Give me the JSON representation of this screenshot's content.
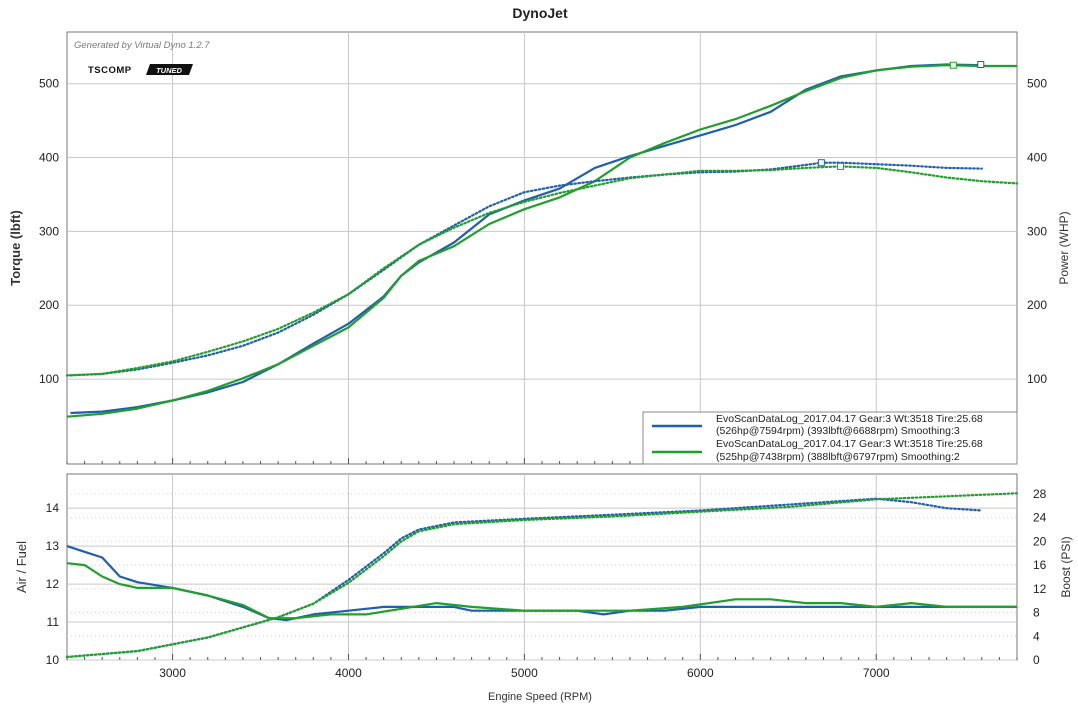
{
  "title": "DynoJet",
  "watermark": "Generated by Virtual Dyno 1.2.7",
  "logo": {
    "text_a": "TSCOMP",
    "text_b": "TUNED"
  },
  "colors": {
    "blue": "#1f5fb0",
    "green": "#1fa02a",
    "grid": "#c8c8c8",
    "axis": "#555555"
  },
  "chart_data": [
    {
      "type": "line",
      "panel": "top",
      "ylabel": "Torque (lbft)",
      "y2label": "Power (WHP)",
      "xlim": [
        2400,
        7800
      ],
      "ylim": [
        -15,
        570
      ],
      "y2lim": [
        -15,
        570
      ],
      "yticks": [
        100,
        200,
        300,
        400,
        500
      ],
      "y2ticks": [
        100,
        200,
        300,
        400,
        500
      ],
      "legend": "bottom-right",
      "legend_entries": [
        {
          "line1": "EvoScanDataLog_2017.04.17 Gear:3 Wt:3518 Tire:25.68",
          "line2": "(526hp@7594rpm) (393lbft@6688rpm) Smoothing:3",
          "color": "blue"
        },
        {
          "line1": "EvoScanDataLog_2017.04.17 Gear:3 Wt:3518 Tire:25.68",
          "line2": "(525hp@7438rpm) (388lbft@6797rpm) Smoothing:2",
          "color": "green"
        }
      ],
      "series": [
        {
          "name": "EvoScanDataLog_2017.04.17 Gear:3 Wt:3518 Tire:25.68 (526hp@7594rpm) (393lbft@6688rpm) Smoothing:3",
          "quantity": "power",
          "color": "blue",
          "dash": "solid",
          "x": [
            2420,
            2600,
            2800,
            3000,
            3200,
            3400,
            3600,
            3800,
            4000,
            4200,
            4300,
            4400,
            4600,
            4800,
            5000,
            5200,
            5400,
            5600,
            5800,
            6000,
            6200,
            6400,
            6600,
            6800,
            7000,
            7200,
            7400,
            7600
          ],
          "y": [
            54,
            56,
            62,
            71,
            82,
            96,
            120,
            148,
            175,
            212,
            240,
            258,
            285,
            323,
            342,
            358,
            386,
            402,
            416,
            430,
            444,
            462,
            492,
            510,
            518,
            524,
            526,
            525
          ]
        },
        {
          "name": "EvoScanDataLog_2017.04.17 Gear:3 Wt:3518 Tire:25.68 (525hp@7438rpm) (388lbft@6797rpm) Smoothing:2",
          "quantity": "power",
          "color": "green",
          "dash": "solid",
          "x": [
            2400,
            2600,
            2800,
            3000,
            3200,
            3400,
            3600,
            3800,
            4000,
            4200,
            4300,
            4400,
            4600,
            4800,
            5000,
            5200,
            5400,
            5600,
            5800,
            6000,
            6200,
            6400,
            6600,
            6800,
            7000,
            7200,
            7400,
            7600,
            7800
          ],
          "y": [
            49,
            53,
            60,
            71,
            84,
            101,
            120,
            145,
            170,
            210,
            240,
            260,
            280,
            310,
            330,
            346,
            368,
            400,
            420,
            438,
            452,
            470,
            490,
            508,
            518,
            523,
            525,
            524,
            524
          ]
        },
        {
          "name": "EvoScanDataLog_2017.04.17 Gear:3 Wt:3518 Tire:25.68 (526hp@7594rpm) (393lbft@6688rpm) Smoothing:3",
          "quantity": "torque",
          "color": "blue",
          "dash": "dotted",
          "x": [
            2420,
            2600,
            2800,
            3000,
            3200,
            3400,
            3600,
            3800,
            4000,
            4200,
            4400,
            4600,
            4800,
            5000,
            5200,
            5400,
            5600,
            5800,
            6000,
            6200,
            6400,
            6600,
            6688,
            6800,
            7000,
            7200,
            7400,
            7600
          ],
          "y": [
            105,
            107,
            113,
            122,
            132,
            145,
            163,
            187,
            215,
            248,
            282,
            308,
            334,
            353,
            362,
            368,
            373,
            377,
            380,
            381,
            384,
            390,
            393,
            393,
            391,
            389,
            386,
            385
          ]
        },
        {
          "name": "EvoScanDataLog_2017.04.17 Gear:3 Wt:3518 Tire:25.68 (525hp@7438rpm) (388lbft@6797rpm) Smoothing:2",
          "quantity": "torque",
          "color": "green",
          "dash": "dotted",
          "x": [
            2400,
            2600,
            2800,
            3000,
            3200,
            3400,
            3600,
            3800,
            4000,
            4200,
            4400,
            4600,
            4800,
            5000,
            5200,
            5400,
            5600,
            5800,
            6000,
            6200,
            6400,
            6600,
            6797,
            7000,
            7200,
            7400,
            7600,
            7800
          ],
          "y": [
            105,
            107,
            115,
            124,
            137,
            151,
            168,
            190,
            215,
            250,
            282,
            305,
            325,
            340,
            352,
            362,
            372,
            377,
            382,
            382,
            383,
            386,
            388,
            386,
            380,
            373,
            368,
            365
          ]
        }
      ],
      "markers": [
        {
          "series": "blue",
          "x": 6688,
          "y": 393
        },
        {
          "series": "blue",
          "x": 7594,
          "y": 526
        },
        {
          "series": "green",
          "x": 6797,
          "y": 388
        },
        {
          "series": "green",
          "x": 7438,
          "y": 525
        }
      ]
    },
    {
      "type": "line",
      "panel": "bottom",
      "xlabel": "Engine Speed (RPM)",
      "ylabel": "Air / Fuel",
      "y2label": "Boost (PSI)",
      "xlim": [
        2400,
        7800
      ],
      "xticks": [
        3000,
        4000,
        5000,
        6000,
        7000
      ],
      "ylim": [
        10,
        14.9
      ],
      "yticks": [
        10,
        11,
        12,
        13,
        14
      ],
      "y2lim": [
        0,
        31.36
      ],
      "y2ticks": [
        0,
        4,
        8,
        12,
        16,
        20,
        24,
        28
      ],
      "series": [
        {
          "name": "EvoScanDataLog_2017.04.17 Gear:3 Wt:3518 Tire:25.68 (526hp@7594rpm) (393lbft@6688rpm) Smoothing:3",
          "quantity": "air_fuel",
          "color": "blue",
          "dash": "solid",
          "x": [
            2400,
            2500,
            2600,
            2700,
            2800,
            3000,
            3200,
            3400,
            3550,
            3650,
            3800,
            4000,
            4200,
            4400,
            4600,
            4700,
            5000,
            5300,
            5450,
            5600,
            5800,
            6000,
            6200,
            6600,
            7000,
            7400,
            7800
          ],
          "y": [
            13.0,
            12.85,
            12.7,
            12.2,
            12.05,
            11.9,
            11.7,
            11.4,
            11.1,
            11.05,
            11.2,
            11.3,
            11.4,
            11.4,
            11.4,
            11.3,
            11.3,
            11.3,
            11.2,
            11.3,
            11.3,
            11.4,
            11.4,
            11.4,
            11.4,
            11.4,
            11.4
          ]
        },
        {
          "name": "EvoScanDataLog_2017.04.17 Gear:3 Wt:3518 Tire:25.68 (525hp@7438rpm) (388lbft@6797rpm) Smoothing:2",
          "quantity": "air_fuel",
          "color": "green",
          "dash": "solid",
          "x": [
            2400,
            2500,
            2600,
            2700,
            2800,
            2900,
            3000,
            3200,
            3400,
            3550,
            3700,
            3900,
            4100,
            4300,
            4500,
            4700,
            5000,
            5300,
            5600,
            5900,
            6200,
            6400,
            6600,
            6800,
            7000,
            7200,
            7400,
            7600,
            7800
          ],
          "y": [
            12.55,
            12.5,
            12.2,
            12.0,
            11.9,
            11.9,
            11.9,
            11.7,
            11.45,
            11.1,
            11.1,
            11.2,
            11.2,
            11.35,
            11.5,
            11.4,
            11.3,
            11.3,
            11.3,
            11.4,
            11.6,
            11.6,
            11.5,
            11.5,
            11.4,
            11.5,
            11.4,
            11.4,
            11.4
          ]
        },
        {
          "name": "EvoScanDataLog_2017.04.17 Gear:3 Wt:3518 Tire:25.68 (526hp@7594rpm) (393lbft@6688rpm) Smoothing:3",
          "quantity": "boost",
          "color": "blue",
          "dash": "dotted",
          "x": [
            2400,
            2800,
            3200,
            3600,
            3800,
            4000,
            4200,
            4300,
            4400,
            4600,
            5000,
            5500,
            6000,
            6500,
            7000,
            7200,
            7400,
            7600
          ],
          "y": [
            0.5,
            1.5,
            3.8,
            7.2,
            9.5,
            13.5,
            18.0,
            20.5,
            22.0,
            23.2,
            23.8,
            24.5,
            25.2,
            26.2,
            27.2,
            26.6,
            25.6,
            25.2
          ]
        },
        {
          "name": "EvoScanDataLog_2017.04.17 Gear:3 Wt:3518 Tire:25.68 (525hp@7438rpm) (388lbft@6797rpm) Smoothing:2",
          "quantity": "boost",
          "color": "green",
          "dash": "dotted",
          "x": [
            2400,
            2800,
            3200,
            3600,
            3800,
            4000,
            4200,
            4300,
            4400,
            4600,
            5000,
            5500,
            6000,
            6500,
            7000,
            7400,
            7800
          ],
          "y": [
            0.5,
            1.5,
            3.8,
            7.2,
            9.5,
            13.0,
            17.5,
            20.0,
            21.7,
            22.9,
            23.6,
            24.2,
            25.0,
            25.8,
            27.1,
            27.6,
            28.1
          ]
        }
      ]
    }
  ]
}
